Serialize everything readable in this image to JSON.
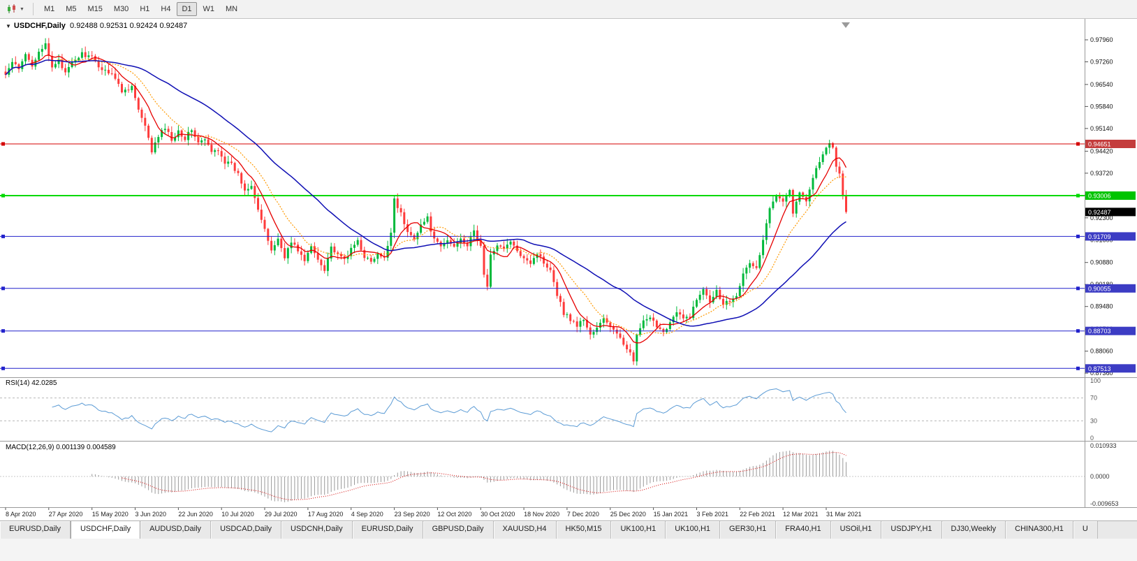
{
  "toolbar": {
    "chart_type_icon": "candlestick-chart-icon",
    "timeframes": [
      "M1",
      "M5",
      "M15",
      "M30",
      "H1",
      "H4",
      "D1",
      "W1",
      "MN"
    ],
    "active_timeframe": "D1"
  },
  "chart": {
    "symbol_label": "USDCHF,Daily",
    "ohlc_values": "0.92488 0.92531 0.92424 0.92487",
    "dropdown_icon": "▼"
  },
  "price_axis": {
    "labels": [
      "0.97960",
      "0.97260",
      "0.96540",
      "0.95840",
      "0.95140",
      "0.94420",
      "0.93720",
      "0.93020",
      "0.92300",
      "0.91600",
      "0.90880",
      "0.90180",
      "0.89480",
      "0.88760",
      "0.88060",
      "0.87360"
    ]
  },
  "levels": [
    {
      "label": "0.94651",
      "price": 0.94651,
      "chip_color": "#c43c3c",
      "line_color": "#d40000",
      "width": 1
    },
    {
      "label": "0.93006",
      "price": 0.93006,
      "chip_color": "#00c400",
      "line_color": "#00d900",
      "width": 2
    },
    {
      "label": "0.91709",
      "price": 0.91709,
      "chip_color": "#3c3cc4",
      "line_color": "#2222cc",
      "width": 1
    },
    {
      "label": "0.90055",
      "price": 0.90055,
      "chip_color": "#3c3cc4",
      "line_color": "#2222cc",
      "width": 1
    },
    {
      "label": "0.88703",
      "price": 0.88703,
      "chip_color": "#3c3cc4",
      "line_color": "#2222cc",
      "width": 1
    },
    {
      "label": "0.87513",
      "price": 0.87513,
      "chip_color": "#3c3cc4",
      "line_color": "#2222cc",
      "width": 1
    }
  ],
  "current_price": {
    "label": "0.92487",
    "price": 0.92487,
    "chip_color": "#000000"
  },
  "rsi": {
    "label": "RSI(14) 42.0285",
    "period": 14,
    "value": 42.0285,
    "axis_labels": [
      "100",
      "70",
      "30",
      "0"
    ],
    "upper_level": 70,
    "lower_level": 30,
    "line_color": "#5b9bd5"
  },
  "macd": {
    "label": "MACD(12,26,9) 0.001139 0.004589",
    "fast": 12,
    "slow": 26,
    "signal": 9,
    "main_value": 0.001139,
    "signal_value": 0.004589,
    "axis_labels": [
      "0.010933",
      "0.0000",
      "-0.009653"
    ],
    "axis_max": 0.010933,
    "axis_min": -0.009653,
    "hist_color": "#9a9a9a",
    "signal_color": "#d40000"
  },
  "date_axis": [
    "8 Apr 2020",
    "27 Apr 2020",
    "15 May 2020",
    "3 Jun 2020",
    "22 Jun 2020",
    "10 Jul 2020",
    "29 Jul 2020",
    "17 Aug 2020",
    "4 Sep 2020",
    "23 Sep 2020",
    "12 Oct 2020",
    "30 Oct 2020",
    "18 Nov 2020",
    "7 Dec 2020",
    "25 Dec 2020",
    "15 Jan 2021",
    "3 Feb 2021",
    "22 Feb 2021",
    "12 Mar 2021",
    "31 Mar 2021"
  ],
  "tabs": {
    "items": [
      "EURUSD,Daily",
      "USDCHF,Daily",
      "AUDUSD,Daily",
      "USDCAD,Daily",
      "USDCNH,Daily",
      "EURUSD,Daily",
      "GBPUSD,Daily",
      "XAUUSD,H4",
      "HK50,M15",
      "UK100,H1",
      "UK100,H1",
      "GER30,H1",
      "FRA40,H1",
      "USOil,H1",
      "USDJPY,H1",
      "DJ30,Weekly",
      "CHINA300,H1",
      "U"
    ],
    "active_index": 1
  },
  "chart_data": {
    "type": "candlestick",
    "symbol": "USDCHF",
    "timeframe": "Daily",
    "open": 0.92488,
    "high": 0.92531,
    "low": 0.92424,
    "close": 0.92487,
    "candle_count": 254,
    "bars_per_date_label": 13,
    "price_top": 0.9856,
    "price_bottom": 0.8723,
    "up_color": "#00b93b",
    "down_color": "#fe3b3b",
    "ma_fast_period": 8,
    "ma_fast_color": "#e60000",
    "ma_mid_period": 16,
    "ma_mid_color": "#ff9900",
    "ma_slow_period": 40,
    "ma_slow_color": "#0f0fb4",
    "price_path_anchors": [
      [
        0,
        0.9685
      ],
      [
        2,
        0.9725
      ],
      [
        4,
        0.97
      ],
      [
        6,
        0.9748
      ],
      [
        8,
        0.9716
      ],
      [
        10,
        0.9762
      ],
      [
        12,
        0.9778
      ],
      [
        14,
        0.9706
      ],
      [
        16,
        0.9736
      ],
      [
        18,
        0.9687
      ],
      [
        20,
        0.9722
      ],
      [
        23,
        0.9752
      ],
      [
        26,
        0.9738
      ],
      [
        29,
        0.9702
      ],
      [
        32,
        0.9692
      ],
      [
        35,
        0.9632
      ],
      [
        38,
        0.9648
      ],
      [
        40,
        0.9572
      ],
      [
        42,
        0.9518
      ],
      [
        44,
        0.9442
      ],
      [
        46,
        0.9488
      ],
      [
        48,
        0.9518
      ],
      [
        50,
        0.9478
      ],
      [
        52,
        0.9508
      ],
      [
        54,
        0.9482
      ],
      [
        56,
        0.9512
      ],
      [
        58,
        0.9468
      ],
      [
        60,
        0.9478
      ],
      [
        62,
        0.9438
      ],
      [
        64,
        0.9448
      ],
      [
        66,
        0.9408
      ],
      [
        68,
        0.9398
      ],
      [
        70,
        0.9368
      ],
      [
        72,
        0.9318
      ],
      [
        74,
        0.9338
      ],
      [
        76,
        0.9258
      ],
      [
        78,
        0.9188
      ],
      [
        80,
        0.9128
      ],
      [
        82,
        0.9162
      ],
      [
        84,
        0.9108
      ],
      [
        86,
        0.9152
      ],
      [
        88,
        0.9128
      ],
      [
        90,
        0.9092
      ],
      [
        92,
        0.9138
      ],
      [
        94,
        0.9098
      ],
      [
        96,
        0.9068
      ],
      [
        98,
        0.9138
      ],
      [
        100,
        0.9108
      ],
      [
        102,
        0.9098
      ],
      [
        104,
        0.9128
      ],
      [
        106,
        0.9158
      ],
      [
        108,
        0.9108
      ],
      [
        110,
        0.9088
      ],
      [
        112,
        0.9112
      ],
      [
        114,
        0.9098
      ],
      [
        116,
        0.9188
      ],
      [
        117,
        0.9292
      ],
      [
        119,
        0.9242
      ],
      [
        121,
        0.9182
      ],
      [
        123,
        0.9168
      ],
      [
        125,
        0.9208
      ],
      [
        127,
        0.9228
      ],
      [
        129,
        0.9158
      ],
      [
        131,
        0.9138
      ],
      [
        133,
        0.9158
      ],
      [
        135,
        0.9138
      ],
      [
        137,
        0.9168
      ],
      [
        139,
        0.9142
      ],
      [
        141,
        0.9188
      ],
      [
        143,
        0.9138
      ],
      [
        144,
        0.9052
      ],
      [
        145,
        0.9008
      ],
      [
        146,
        0.9108
      ],
      [
        148,
        0.9148
      ],
      [
        150,
        0.9128
      ],
      [
        152,
        0.9158
      ],
      [
        154,
        0.9118
      ],
      [
        156,
        0.9108
      ],
      [
        158,
        0.9088
      ],
      [
        160,
        0.9118
      ],
      [
        162,
        0.9088
      ],
      [
        164,
        0.9068
      ],
      [
        166,
        0.8988
      ],
      [
        168,
        0.8928
      ],
      [
        170,
        0.8908
      ],
      [
        172,
        0.8888
      ],
      [
        174,
        0.8908
      ],
      [
        176,
        0.8858
      ],
      [
        178,
        0.8878
      ],
      [
        180,
        0.8908
      ],
      [
        182,
        0.8888
      ],
      [
        184,
        0.8858
      ],
      [
        186,
        0.8828
      ],
      [
        188,
        0.8808
      ],
      [
        189,
        0.8768
      ],
      [
        190,
        0.8858
      ],
      [
        192,
        0.8898
      ],
      [
        194,
        0.8908
      ],
      [
        196,
        0.8888
      ],
      [
        198,
        0.8868
      ],
      [
        200,
        0.8898
      ],
      [
        202,
        0.8928
      ],
      [
        204,
        0.8908
      ],
      [
        206,
        0.8918
      ],
      [
        208,
        0.8968
      ],
      [
        210,
        0.9008
      ],
      [
        212,
        0.8968
      ],
      [
        214,
        0.8998
      ],
      [
        216,
        0.8958
      ],
      [
        218,
        0.8968
      ],
      [
        220,
        0.8988
      ],
      [
        222,
        0.9048
      ],
      [
        224,
        0.9088
      ],
      [
        226,
        0.9068
      ],
      [
        228,
        0.9158
      ],
      [
        230,
        0.9258
      ],
      [
        232,
        0.9308
      ],
      [
        234,
        0.9288
      ],
      [
        236,
        0.9318
      ],
      [
        237,
        0.9248
      ],
      [
        239,
        0.9308
      ],
      [
        241,
        0.9288
      ],
      [
        243,
        0.9358
      ],
      [
        245,
        0.9412
      ],
      [
        247,
        0.9448
      ],
      [
        248,
        0.9468
      ],
      [
        249,
        0.9448
      ],
      [
        250,
        0.9398
      ],
      [
        251,
        0.9368
      ],
      [
        252,
        0.9308
      ],
      [
        253,
        0.92487
      ]
    ]
  }
}
